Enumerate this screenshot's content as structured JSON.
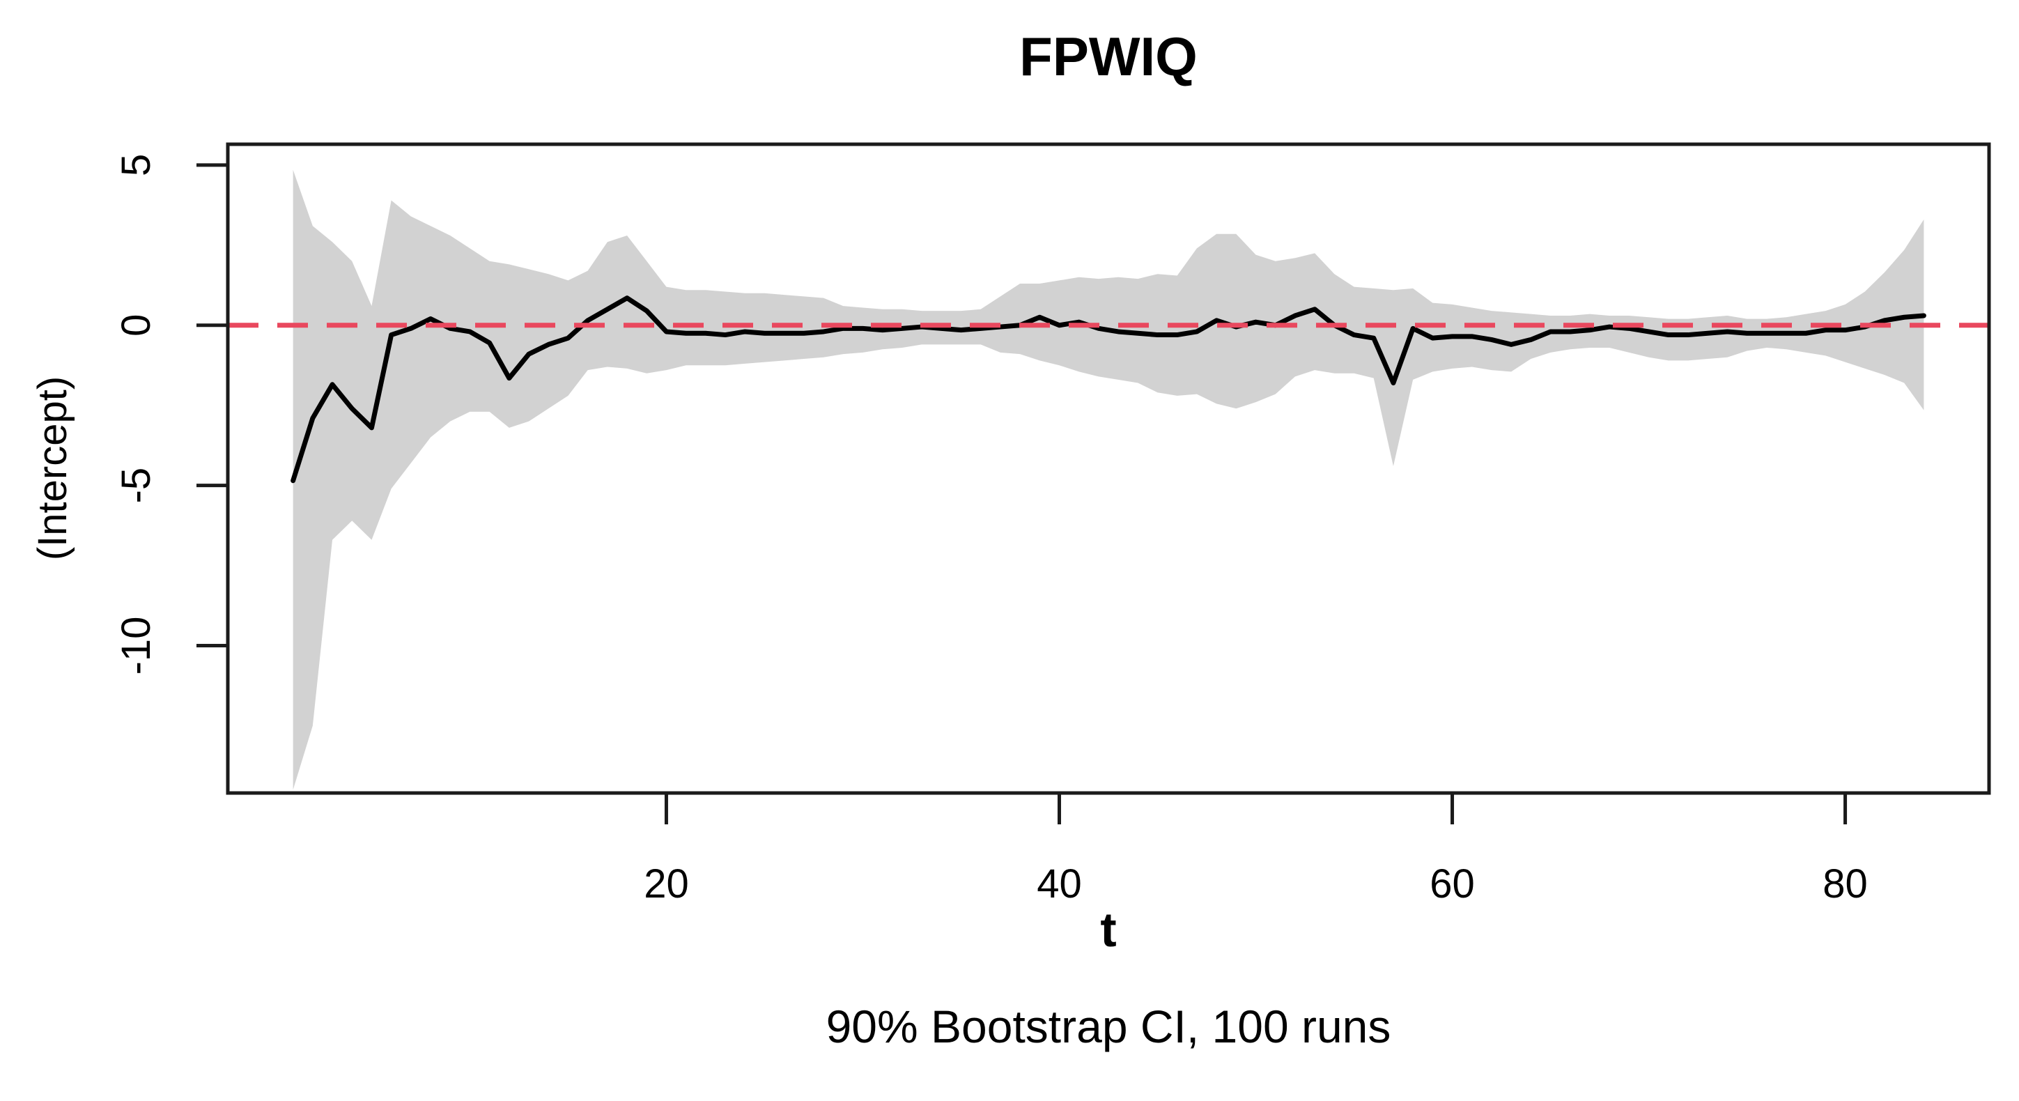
{
  "title": "FPWIQ",
  "subtitle": "90% Bootstrap CI, 100 runs",
  "x_axis": {
    "label": "t",
    "ticks": [
      {
        "label": "20",
        "value": 20
      },
      {
        "label": "40",
        "value": 40
      },
      {
        "label": "60",
        "value": 60
      },
      {
        "label": "80",
        "value": 80
      }
    ]
  },
  "y_axis": {
    "label": "(Intercept)",
    "ticks": [
      {
        "label": "5",
        "value": 5
      },
      {
        "label": "0",
        "value": 0
      },
      {
        "label": "-5",
        "value": -5
      },
      {
        "label": "-10",
        "value": -10
      }
    ]
  },
  "colors": {
    "background": "#ffffff",
    "plot_border": "#1b1b1b",
    "band_fill": "#d2d2d2",
    "estimate_line": "#000000",
    "zero_line": "#e9485e",
    "text": "#000000"
  },
  "chart_data": {
    "type": "line",
    "title": "FPWIQ",
    "subtitle": "90% Bootstrap CI, 100 runs",
    "xlabel": "t",
    "ylabel": "(Intercept)",
    "xlim": [
      -2.32,
      87.32
    ],
    "ylim": [
      -14.6,
      5.65
    ],
    "grid": false,
    "legend": "none",
    "zero_reference_line": {
      "y": 0,
      "style": "dashed",
      "color": "#e9485e"
    },
    "x": [
      1,
      2,
      3,
      4,
      5,
      6,
      7,
      8,
      9,
      10,
      11,
      12,
      13,
      14,
      15,
      16,
      17,
      18,
      19,
      20,
      21,
      22,
      23,
      24,
      25,
      26,
      27,
      28,
      29,
      30,
      31,
      32,
      33,
      34,
      35,
      36,
      37,
      38,
      39,
      40,
      41,
      42,
      43,
      44,
      45,
      46,
      47,
      48,
      49,
      50,
      51,
      52,
      53,
      54,
      55,
      56,
      57,
      58,
      59,
      60,
      61,
      62,
      63,
      64,
      65,
      66,
      67,
      68,
      69,
      70,
      71,
      72,
      73,
      74,
      75,
      76,
      77,
      78,
      79,
      80,
      81,
      82,
      83,
      84
    ],
    "series": [
      {
        "name": "estimate",
        "role": "mean-line",
        "values": [
          -4.85,
          -2.9,
          -1.85,
          -2.6,
          -3.2,
          -0.3,
          -0.1,
          0.2,
          -0.1,
          -0.2,
          -0.55,
          -1.65,
          -0.9,
          -0.6,
          -0.4,
          0.15,
          0.5,
          0.85,
          0.45,
          -0.2,
          -0.25,
          -0.25,
          -0.3,
          -0.2,
          -0.25,
          -0.25,
          -0.25,
          -0.2,
          -0.1,
          -0.1,
          -0.15,
          -0.1,
          -0.05,
          -0.1,
          -0.15,
          -0.1,
          -0.05,
          0.0,
          0.25,
          0.0,
          0.1,
          -0.1,
          -0.2,
          -0.25,
          -0.3,
          -0.3,
          -0.2,
          0.15,
          -0.05,
          0.1,
          0.0,
          0.3,
          0.5,
          0.0,
          -0.3,
          -0.4,
          -1.8,
          -0.1,
          -0.4,
          -0.35,
          -0.35,
          -0.45,
          -0.6,
          -0.45,
          -0.2,
          -0.2,
          -0.15,
          -0.05,
          -0.1,
          -0.2,
          -0.3,
          -0.3,
          -0.25,
          -0.2,
          -0.25,
          -0.25,
          -0.25,
          -0.25,
          -0.15,
          -0.15,
          -0.05,
          0.15,
          0.25,
          0.3
        ]
      },
      {
        "name": "ci_upper",
        "role": "band-upper",
        "values": [
          4.85,
          3.1,
          2.6,
          2.0,
          0.6,
          3.9,
          3.4,
          3.1,
          2.8,
          2.4,
          2.0,
          1.9,
          1.75,
          1.6,
          1.4,
          1.7,
          2.6,
          2.8,
          2.0,
          1.2,
          1.1,
          1.1,
          1.05,
          1.0,
          1.0,
          0.95,
          0.9,
          0.85,
          0.6,
          0.55,
          0.5,
          0.5,
          0.45,
          0.45,
          0.45,
          0.5,
          0.9,
          1.3,
          1.3,
          1.4,
          1.5,
          1.45,
          1.5,
          1.45,
          1.6,
          1.55,
          2.4,
          2.85,
          2.85,
          2.2,
          2.0,
          2.1,
          2.25,
          1.6,
          1.2,
          1.15,
          1.1,
          1.15,
          0.7,
          0.65,
          0.55,
          0.45,
          0.4,
          0.35,
          0.3,
          0.3,
          0.35,
          0.3,
          0.3,
          0.25,
          0.2,
          0.2,
          0.25,
          0.3,
          0.2,
          0.2,
          0.25,
          0.35,
          0.45,
          0.65,
          1.05,
          1.65,
          2.35,
          3.3
        ]
      },
      {
        "name": "ci_lower",
        "role": "band-lower",
        "values": [
          -14.5,
          -12.5,
          -6.7,
          -6.1,
          -6.7,
          -5.1,
          -4.3,
          -3.5,
          -3.0,
          -2.7,
          -2.7,
          -3.2,
          -3.0,
          -2.6,
          -2.2,
          -1.4,
          -1.3,
          -1.35,
          -1.5,
          -1.4,
          -1.25,
          -1.25,
          -1.25,
          -1.2,
          -1.15,
          -1.1,
          -1.05,
          -1.0,
          -0.9,
          -0.85,
          -0.75,
          -0.7,
          -0.6,
          -0.6,
          -0.6,
          -0.6,
          -0.85,
          -0.9,
          -1.1,
          -1.25,
          -1.45,
          -1.6,
          -1.7,
          -1.8,
          -2.1,
          -2.2,
          -2.15,
          -2.45,
          -2.6,
          -2.4,
          -2.15,
          -1.6,
          -1.4,
          -1.5,
          -1.5,
          -1.65,
          -4.4,
          -1.7,
          -1.45,
          -1.35,
          -1.3,
          -1.4,
          -1.45,
          -1.05,
          -0.85,
          -0.75,
          -0.7,
          -0.7,
          -0.85,
          -1.0,
          -1.1,
          -1.1,
          -1.05,
          -1.0,
          -0.8,
          -0.7,
          -0.75,
          -0.85,
          -0.95,
          -1.15,
          -1.35,
          -1.55,
          -1.8,
          -2.65
        ]
      }
    ],
    "band": {
      "upper": "ci_upper",
      "lower": "ci_lower",
      "fill": "#d2d2d2"
    }
  }
}
